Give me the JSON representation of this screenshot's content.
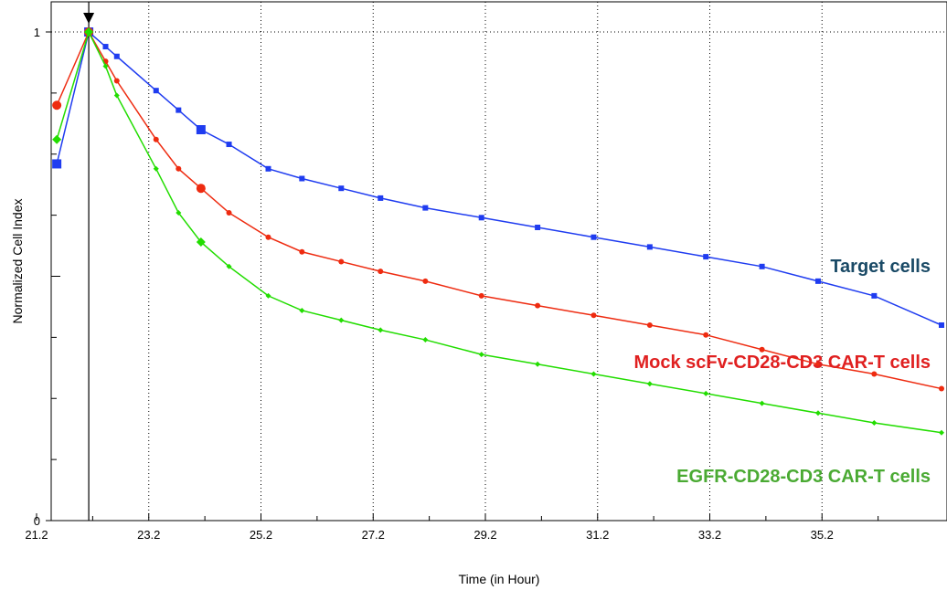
{
  "chart_data": {
    "type": "line",
    "title": "",
    "xlabel": "Time (in Hour)",
    "ylabel": "Normalized Cell Index",
    "xlim": [
      21.2,
      37.2
    ],
    "ylim": [
      0,
      1
    ],
    "x_ticks": [
      "21.2",
      "23.2",
      "25.2",
      "27.2",
      "29.2",
      "31.2",
      "33.2",
      "35.2"
    ],
    "y_ticks": [
      "0",
      "1"
    ],
    "grid": "vertical dotted",
    "marker_time": 22.0,
    "series": [
      {
        "name": "Target cells",
        "color": "#1f3cf0",
        "label_color": "#1a4a66",
        "x": [
          21.3,
          22.0,
          22.3,
          22.5,
          23.2,
          23.6,
          24.0,
          24.5,
          25.2,
          25.8,
          26.5,
          27.2,
          28.0,
          29.0,
          30.0,
          31.0,
          32.0,
          33.0,
          34.0,
          35.0,
          36.0,
          37.2
        ],
        "y": [
          0.73,
          1.0,
          0.97,
          0.95,
          0.88,
          0.84,
          0.8,
          0.77,
          0.72,
          0.7,
          0.68,
          0.66,
          0.64,
          0.62,
          0.6,
          0.58,
          0.56,
          0.54,
          0.52,
          0.49,
          0.46,
          0.4
        ]
      },
      {
        "name": "Mock scFv-CD28-CD3 CAR-T cells",
        "color": "#ee2b10",
        "label_color": "#e02020",
        "x": [
          21.3,
          22.0,
          22.3,
          22.5,
          23.2,
          23.6,
          24.0,
          24.5,
          25.2,
          25.8,
          26.5,
          27.2,
          28.0,
          29.0,
          30.0,
          31.0,
          32.0,
          33.0,
          34.0,
          35.0,
          36.0,
          37.2
        ],
        "y": [
          0.85,
          1.0,
          0.94,
          0.9,
          0.78,
          0.72,
          0.68,
          0.63,
          0.58,
          0.55,
          0.53,
          0.51,
          0.49,
          0.46,
          0.44,
          0.42,
          0.4,
          0.38,
          0.35,
          0.32,
          0.3,
          0.27
        ]
      },
      {
        "name": "EGFR-CD28-CD3 CAR-T cells",
        "color": "#22dd00",
        "label_color": "#4aaa33",
        "x": [
          21.3,
          22.0,
          22.3,
          22.5,
          23.2,
          23.6,
          24.0,
          24.5,
          25.2,
          25.8,
          26.5,
          27.2,
          28.0,
          29.0,
          30.0,
          31.0,
          32.0,
          33.0,
          34.0,
          35.0,
          36.0,
          37.2
        ],
        "y": [
          0.78,
          1.0,
          0.93,
          0.87,
          0.72,
          0.63,
          0.57,
          0.52,
          0.46,
          0.43,
          0.41,
          0.39,
          0.37,
          0.34,
          0.32,
          0.3,
          0.28,
          0.26,
          0.24,
          0.22,
          0.2,
          0.18
        ]
      }
    ]
  }
}
